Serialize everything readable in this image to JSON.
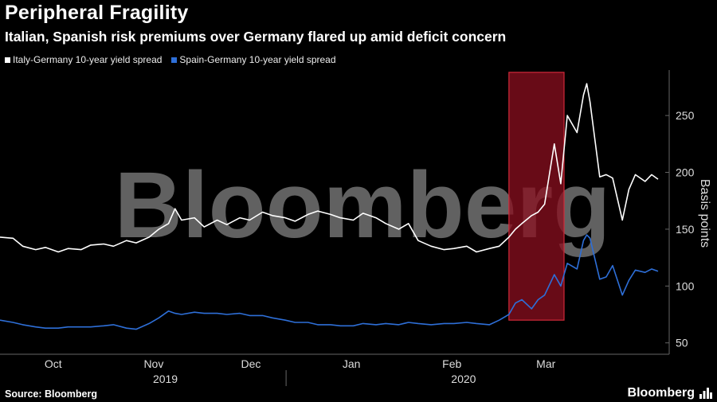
{
  "header": {
    "title": "Peripheral Fragility",
    "subtitle": "Italian, Spanish risk premiums over Germany flared up amid deficit concern"
  },
  "footer": {
    "source": "Source: Bloomberg",
    "brand": "Bloomberg"
  },
  "colors": {
    "italy": "#ffffff",
    "spain": "#2e6fd8",
    "highlight": "#8b0f1f",
    "highlight_border": "#d02a3a",
    "grid": "#666666"
  },
  "chart_data": {
    "type": "line",
    "ylabel": "Basis points",
    "ylim": [
      40,
      290
    ],
    "yticks": [
      50,
      100,
      150,
      200,
      250
    ],
    "xlim": [
      "2019-09-20",
      "2020-04-10"
    ],
    "x_ticks": [
      {
        "label": "Oct",
        "date": "2019-10-01"
      },
      {
        "label": "Nov",
        "date": "2019-11-01"
      },
      {
        "label": "Dec",
        "date": "2019-12-01"
      },
      {
        "label": "Jan",
        "date": "2020-01-01"
      },
      {
        "label": "Feb",
        "date": "2020-02-01"
      },
      {
        "label": "Mar",
        "date": "2020-03-01"
      }
    ],
    "years": [
      {
        "label": "2019",
        "date": "2019-11-10"
      },
      {
        "label": "2020",
        "date": "2020-02-10"
      }
    ],
    "year_divider": "2020-01-01",
    "highlight": {
      "start": "2020-02-24",
      "end": "2020-03-12",
      "ymin": 70,
      "ymax": 288
    },
    "watermark": "Bloomberg",
    "series": [
      {
        "name": "Italy-Germany 10-year yield spread",
        "points": [
          [
            "2019-09-20",
            143
          ],
          [
            "2019-09-24",
            142
          ],
          [
            "2019-09-27",
            135
          ],
          [
            "2019-10-01",
            132
          ],
          [
            "2019-10-04",
            134
          ],
          [
            "2019-10-08",
            130
          ],
          [
            "2019-10-11",
            133
          ],
          [
            "2019-10-15",
            132
          ],
          [
            "2019-10-18",
            136
          ],
          [
            "2019-10-22",
            137
          ],
          [
            "2019-10-25",
            135
          ],
          [
            "2019-10-29",
            140
          ],
          [
            "2019-11-01",
            138
          ],
          [
            "2019-11-05",
            143
          ],
          [
            "2019-11-08",
            150
          ],
          [
            "2019-11-11",
            155
          ],
          [
            "2019-11-13",
            168
          ],
          [
            "2019-11-15",
            158
          ],
          [
            "2019-11-19",
            160
          ],
          [
            "2019-11-22",
            152
          ],
          [
            "2019-11-26",
            158
          ],
          [
            "2019-11-29",
            154
          ],
          [
            "2019-12-03",
            160
          ],
          [
            "2019-12-06",
            158
          ],
          [
            "2019-12-10",
            165
          ],
          [
            "2019-12-13",
            162
          ],
          [
            "2019-12-17",
            160
          ],
          [
            "2019-12-20",
            157
          ],
          [
            "2019-12-24",
            163
          ],
          [
            "2019-12-27",
            166
          ],
          [
            "2019-12-31",
            163
          ],
          [
            "2020-01-03",
            160
          ],
          [
            "2020-01-07",
            158
          ],
          [
            "2020-01-10",
            164
          ],
          [
            "2020-01-14",
            160
          ],
          [
            "2020-01-17",
            155
          ],
          [
            "2020-01-21",
            150
          ],
          [
            "2020-01-24",
            155
          ],
          [
            "2020-01-27",
            140
          ],
          [
            "2020-01-31",
            135
          ],
          [
            "2020-02-04",
            132
          ],
          [
            "2020-02-07",
            133
          ],
          [
            "2020-02-11",
            135
          ],
          [
            "2020-02-14",
            130
          ],
          [
            "2020-02-18",
            133
          ],
          [
            "2020-02-21",
            135
          ],
          [
            "2020-02-24",
            143
          ],
          [
            "2020-02-26",
            150
          ],
          [
            "2020-02-28",
            155
          ],
          [
            "2020-03-02",
            162
          ],
          [
            "2020-03-04",
            165
          ],
          [
            "2020-03-06",
            172
          ],
          [
            "2020-03-09",
            225
          ],
          [
            "2020-03-11",
            190
          ],
          [
            "2020-03-13",
            250
          ],
          [
            "2020-03-16",
            235
          ],
          [
            "2020-03-18",
            268
          ],
          [
            "2020-03-19",
            278
          ],
          [
            "2020-03-20",
            262
          ],
          [
            "2020-03-23",
            196
          ],
          [
            "2020-03-25",
            198
          ],
          [
            "2020-03-27",
            195
          ],
          [
            "2020-03-30",
            158
          ],
          [
            "2020-04-01",
            185
          ],
          [
            "2020-04-03",
            198
          ],
          [
            "2020-04-06",
            192
          ],
          [
            "2020-04-08",
            198
          ],
          [
            "2020-04-10",
            194
          ]
        ]
      },
      {
        "name": "Spain-Germany 10-year yield spread",
        "points": [
          [
            "2019-09-20",
            70
          ],
          [
            "2019-09-24",
            68
          ],
          [
            "2019-09-27",
            66
          ],
          [
            "2019-10-01",
            64
          ],
          [
            "2019-10-04",
            63
          ],
          [
            "2019-10-08",
            63
          ],
          [
            "2019-10-11",
            64
          ],
          [
            "2019-10-15",
            64
          ],
          [
            "2019-10-18",
            64
          ],
          [
            "2019-10-22",
            65
          ],
          [
            "2019-10-25",
            66
          ],
          [
            "2019-10-29",
            63
          ],
          [
            "2019-11-01",
            62
          ],
          [
            "2019-11-05",
            67
          ],
          [
            "2019-11-08",
            72
          ],
          [
            "2019-11-11",
            78
          ],
          [
            "2019-11-13",
            76
          ],
          [
            "2019-11-15",
            75
          ],
          [
            "2019-11-19",
            77
          ],
          [
            "2019-11-22",
            76
          ],
          [
            "2019-11-26",
            76
          ],
          [
            "2019-11-29",
            75
          ],
          [
            "2019-12-03",
            76
          ],
          [
            "2019-12-06",
            74
          ],
          [
            "2019-12-10",
            74
          ],
          [
            "2019-12-13",
            72
          ],
          [
            "2019-12-17",
            70
          ],
          [
            "2019-12-20",
            68
          ],
          [
            "2019-12-24",
            68
          ],
          [
            "2019-12-27",
            66
          ],
          [
            "2019-12-31",
            66
          ],
          [
            "2020-01-03",
            65
          ],
          [
            "2020-01-07",
            65
          ],
          [
            "2020-01-10",
            67
          ],
          [
            "2020-01-14",
            66
          ],
          [
            "2020-01-17",
            67
          ],
          [
            "2020-01-21",
            66
          ],
          [
            "2020-01-24",
            68
          ],
          [
            "2020-01-27",
            67
          ],
          [
            "2020-01-31",
            66
          ],
          [
            "2020-02-04",
            67
          ],
          [
            "2020-02-07",
            67
          ],
          [
            "2020-02-11",
            68
          ],
          [
            "2020-02-14",
            67
          ],
          [
            "2020-02-18",
            66
          ],
          [
            "2020-02-21",
            70
          ],
          [
            "2020-02-24",
            75
          ],
          [
            "2020-02-26",
            85
          ],
          [
            "2020-02-28",
            88
          ],
          [
            "2020-03-02",
            80
          ],
          [
            "2020-03-04",
            88
          ],
          [
            "2020-03-06",
            92
          ],
          [
            "2020-03-09",
            110
          ],
          [
            "2020-03-11",
            100
          ],
          [
            "2020-03-13",
            120
          ],
          [
            "2020-03-16",
            115
          ],
          [
            "2020-03-18",
            140
          ],
          [
            "2020-03-19",
            145
          ],
          [
            "2020-03-20",
            142
          ],
          [
            "2020-03-23",
            106
          ],
          [
            "2020-03-25",
            108
          ],
          [
            "2020-03-27",
            118
          ],
          [
            "2020-03-30",
            92
          ],
          [
            "2020-04-01",
            105
          ],
          [
            "2020-04-03",
            114
          ],
          [
            "2020-04-06",
            112
          ],
          [
            "2020-04-08",
            115
          ],
          [
            "2020-04-10",
            113
          ]
        ]
      }
    ]
  }
}
